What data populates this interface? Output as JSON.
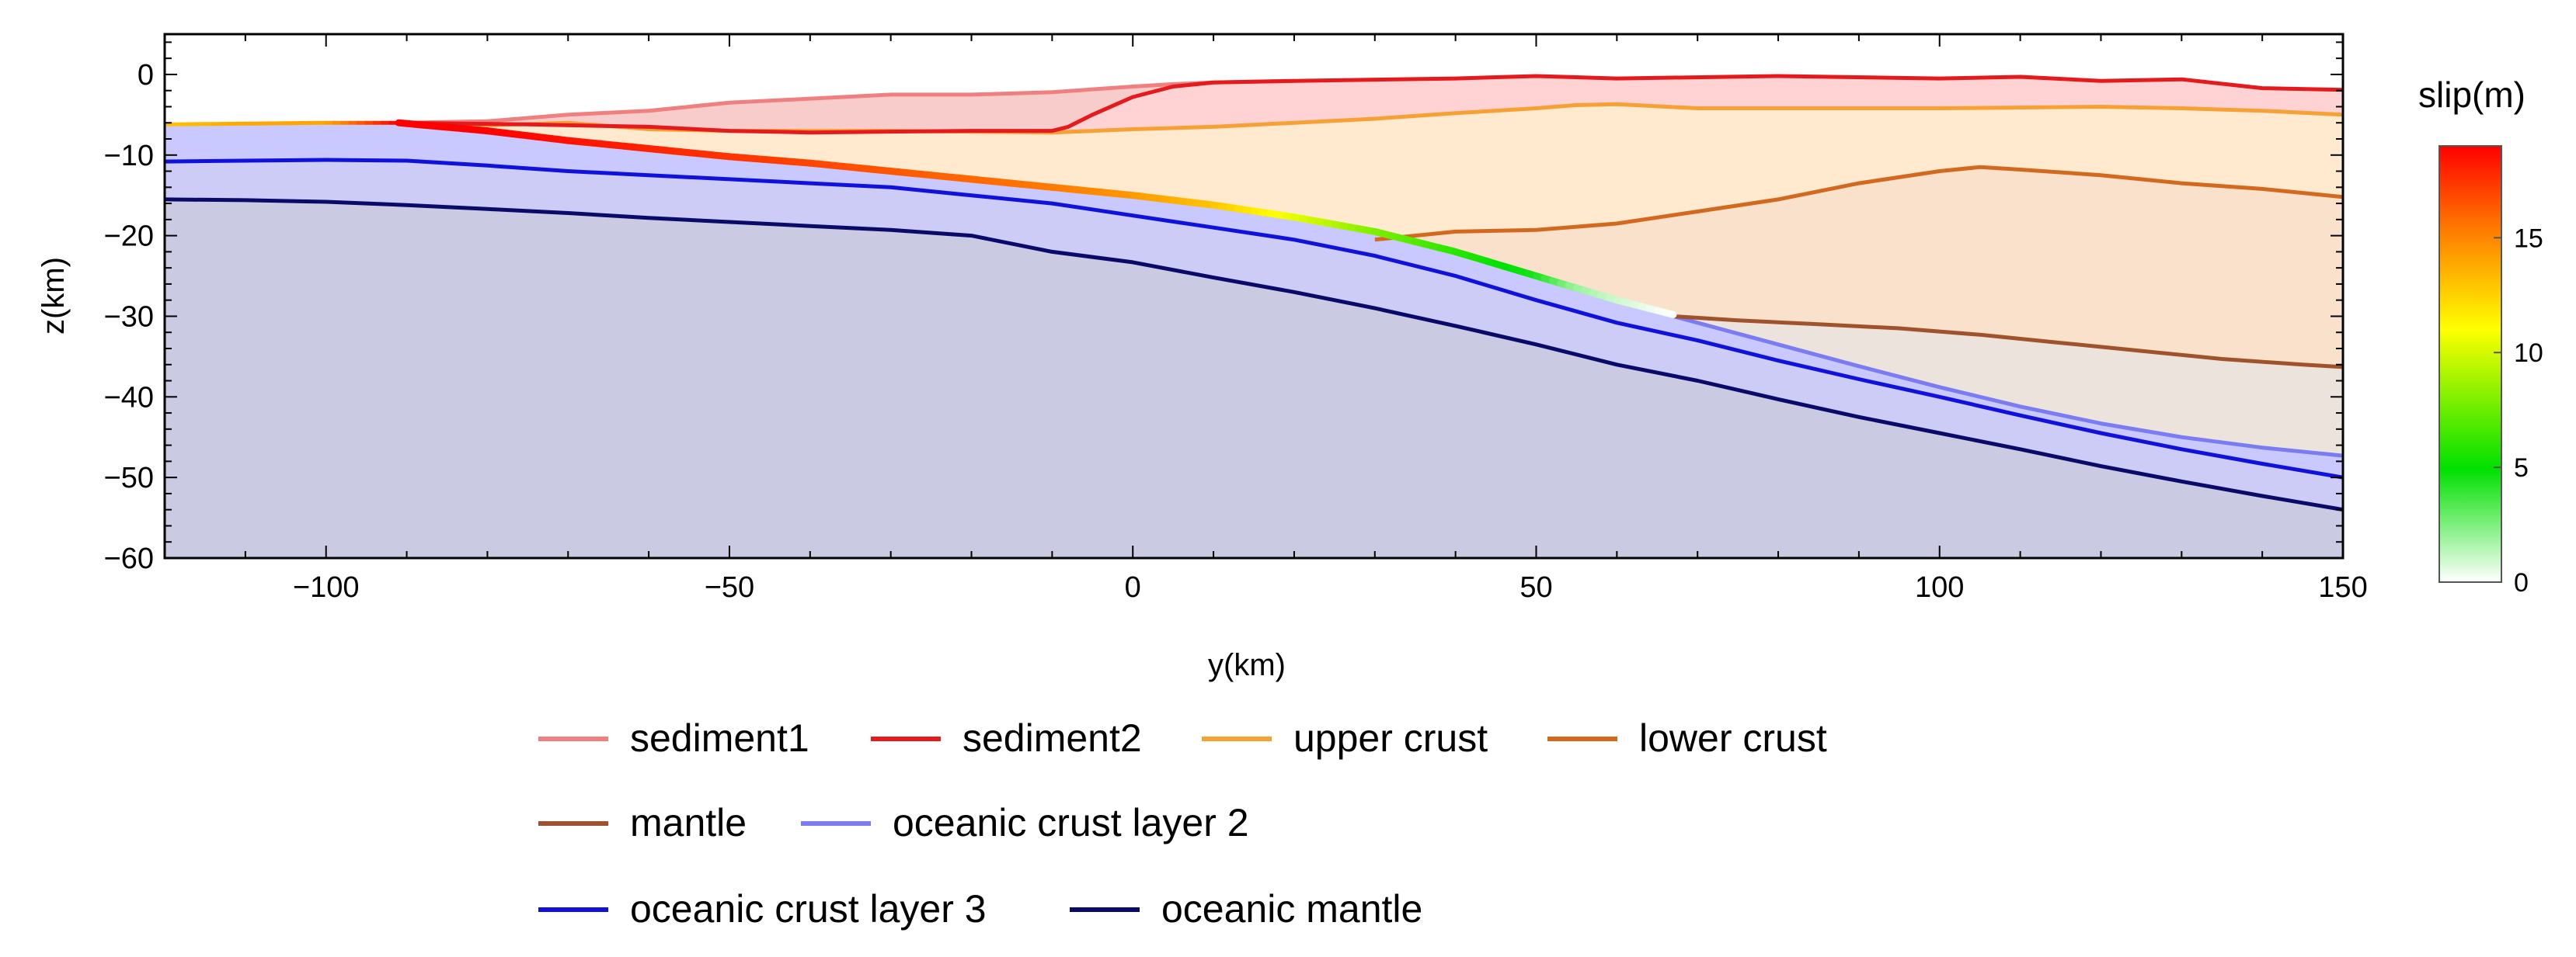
{
  "chart_data": {
    "type": "area",
    "title": "",
    "xlabel": "y(km)",
    "ylabel": "z(km)",
    "xlim": [
      -120,
      150
    ],
    "ylim": [
      -60,
      5
    ],
    "xticks": [
      -100,
      -50,
      0,
      50,
      100,
      150
    ],
    "xtick_labels": [
      "−100",
      "−50",
      "0",
      "50",
      "100",
      "150"
    ],
    "yticks": [
      0,
      -10,
      -20,
      -30,
      -40,
      -50,
      -60
    ],
    "ytick_labels": [
      "0",
      "−10",
      "−20",
      "−30",
      "−40",
      "−50",
      "−60"
    ],
    "series": [
      {
        "key": "sed1",
        "name": "sediment1",
        "color": "#f08080",
        "x": [
          -91,
          -80,
          -70,
          -60,
          -50,
          -40,
          -30,
          -20,
          -10,
          0,
          5,
          10,
          20
        ],
        "y": [
          -6.0,
          -5.8,
          -5.0,
          -4.5,
          -3.5,
          -3.0,
          -2.5,
          -2.5,
          -2.2,
          -1.5,
          -1.2,
          -1.0,
          -0.8
        ]
      },
      {
        "key": "sed2",
        "name": "sediment2",
        "color": "#e41a1c",
        "x": [
          -91,
          -75,
          -60,
          -50,
          -40,
          -20,
          -10,
          -8,
          -5,
          0,
          5,
          10,
          20,
          40,
          50,
          60,
          80,
          100,
          110,
          120,
          130,
          140,
          150
        ],
        "y": [
          -6.0,
          -6.2,
          -6.5,
          -7.0,
          -7.2,
          -7.0,
          -7.0,
          -6.5,
          -5.0,
          -2.8,
          -1.5,
          -1.0,
          -0.8,
          -0.5,
          -0.2,
          -0.5,
          -0.2,
          -0.5,
          -0.3,
          -0.8,
          -0.6,
          -1.7,
          -1.9
        ]
      },
      {
        "key": "upper",
        "name": "upper crust",
        "color": "#f7a035",
        "x": [
          -91,
          -80,
          -70,
          -60,
          -50,
          -30,
          -10,
          0,
          10,
          20,
          30,
          40,
          50,
          55,
          60,
          70,
          80,
          100,
          120,
          130,
          140,
          150
        ],
        "y": [
          -6.0,
          -6.3,
          -6.0,
          -6.8,
          -7.0,
          -7.0,
          -7.2,
          -6.8,
          -6.5,
          -6.0,
          -5.5,
          -4.8,
          -4.2,
          -3.8,
          -3.7,
          -4.2,
          -4.2,
          -4.2,
          -4.0,
          -4.2,
          -4.5,
          -5.0
        ]
      },
      {
        "key": "lower",
        "name": "lower crust",
        "color": "#d2691e",
        "x": [
          30,
          40,
          50,
          60,
          70,
          80,
          90,
          100,
          105,
          110,
          120,
          130,
          140,
          150
        ],
        "y": [
          -20.5,
          -19.5,
          -19.3,
          -18.5,
          -17.0,
          -15.5,
          -13.5,
          -12.0,
          -11.5,
          -11.8,
          -12.5,
          -13.5,
          -14.2,
          -15.2
        ]
      },
      {
        "key": "mantle",
        "name": "mantle",
        "color": "#a0522d",
        "x": [
          67,
          75,
          85,
          95,
          105,
          115,
          125,
          135,
          145,
          150
        ],
        "y": [
          -30.0,
          -30.5,
          -31.0,
          -31.5,
          -32.3,
          -33.3,
          -34.3,
          -35.3,
          -36.0,
          -36.3
        ]
      },
      {
        "key": "oc2",
        "name": "oceanic crust layer 2",
        "color": "#7b7bf2",
        "x": [
          67,
          80,
          90,
          100,
          110,
          120,
          130,
          140,
          150
        ],
        "y": [
          -30.0,
          -33.5,
          -36.2,
          -38.8,
          -41.2,
          -43.3,
          -45.0,
          -46.3,
          -47.3
        ]
      },
      {
        "key": "oc3",
        "name": "oceanic crust layer 3",
        "color": "#1111dd",
        "x": [
          -120,
          -110,
          -100,
          -90,
          -80,
          -70,
          -60,
          -50,
          -40,
          -30,
          -20,
          -10,
          0,
          10,
          20,
          30,
          40,
          50,
          60,
          70,
          80,
          90,
          100,
          110,
          120,
          130,
          140,
          150
        ],
        "y": [
          -10.8,
          -10.7,
          -10.6,
          -10.7,
          -11.3,
          -12.0,
          -12.5,
          -13.0,
          -13.5,
          -14.0,
          -15.0,
          -16.0,
          -17.5,
          -19.0,
          -20.5,
          -22.5,
          -25.0,
          -28.0,
          -30.8,
          -33.0,
          -35.5,
          -37.8,
          -40.0,
          -42.3,
          -44.5,
          -46.5,
          -48.3,
          -50.0
        ]
      },
      {
        "key": "ocm",
        "name": "oceanic mantle",
        "color": "#0a0a6b",
        "x": [
          -120,
          -110,
          -100,
          -90,
          -80,
          -70,
          -60,
          -50,
          -40,
          -30,
          -20,
          -10,
          0,
          10,
          20,
          30,
          40,
          50,
          60,
          70,
          80,
          90,
          100,
          110,
          120,
          130,
          140,
          150
        ],
        "y": [
          -15.5,
          -15.6,
          -15.8,
          -16.2,
          -16.7,
          -17.2,
          -17.8,
          -18.3,
          -18.8,
          -19.3,
          -20.0,
          -22.0,
          -23.3,
          -25.2,
          -27.0,
          -29.0,
          -31.2,
          -33.5,
          -36.0,
          -38.0,
          -40.3,
          -42.5,
          -44.5,
          -46.5,
          -48.6,
          -50.5,
          -52.3,
          -54.0
        ]
      }
    ],
    "fault": {
      "x": [
        -120,
        -110,
        -100,
        -91,
        -80,
        -70,
        -60,
        -50,
        -40,
        -30,
        -20,
        -10,
        0,
        10,
        20,
        30,
        40,
        50,
        55,
        60,
        67
      ],
      "y": [
        -6.2,
        -6.1,
        -6.0,
        -6.0,
        -7.0,
        -8.2,
        -9.2,
        -10.2,
        -11.0,
        -12.0,
        -13.0,
        -14.0,
        -15.0,
        -16.2,
        -17.7,
        -19.5,
        -22.0,
        -25.0,
        -26.5,
        -28.0,
        -29.8
      ],
      "slip": [
        13,
        14,
        14,
        19,
        19,
        18.5,
        18,
        17.5,
        17,
        16.5,
        16,
        15.5,
        14.5,
        13,
        10.5,
        8,
        6,
        4.5,
        2,
        1,
        0
      ]
    },
    "colorbar": {
      "label": "slip(m)",
      "min": 0,
      "max": 19,
      "ticks": [
        0,
        5,
        10,
        15
      ],
      "tick_labels": [
        "0",
        "5",
        "10",
        "15"
      ],
      "colors": [
        "#ffffff",
        "#00e000",
        "#ffff00",
        "#ff8000",
        "#ff0000"
      ]
    },
    "legend_rows": [
      [
        "sed1",
        "sed2",
        "upper",
        "lower"
      ],
      [
        "mantle",
        "oc2"
      ],
      [
        "oc3",
        "ocm"
      ]
    ]
  }
}
